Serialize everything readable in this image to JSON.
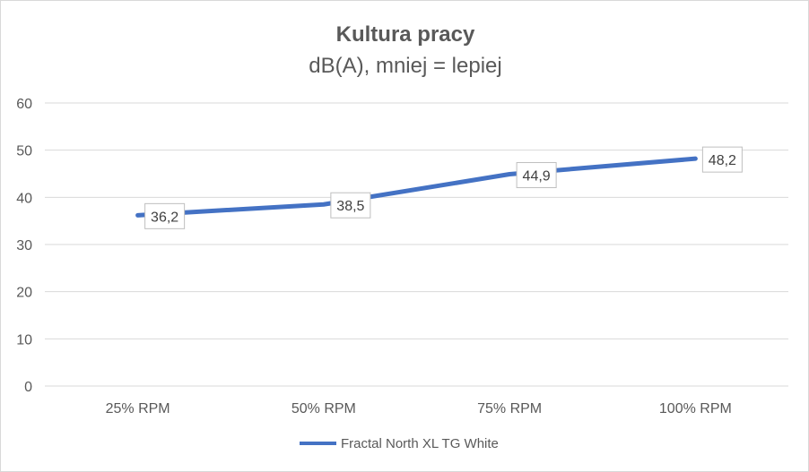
{
  "chart_data": {
    "type": "line",
    "title": "Kultura pracy",
    "subtitle": "dB(A), mniej = lepiej",
    "categories": [
      "25% RPM",
      "50% RPM",
      "75% RPM",
      "100% RPM"
    ],
    "series": [
      {
        "name": "Fractal North XL TG White",
        "values": [
          36.2,
          38.5,
          44.9,
          48.2
        ],
        "labels": [
          "36,2",
          "38,5",
          "44,9",
          "48,2"
        ],
        "color": "#4472c4"
      }
    ],
    "y_ticks": [
      "0",
      "10",
      "20",
      "30",
      "40",
      "50",
      "60"
    ],
    "ylim": [
      0,
      60
    ],
    "grid": true,
    "legend_position": "bottom"
  }
}
